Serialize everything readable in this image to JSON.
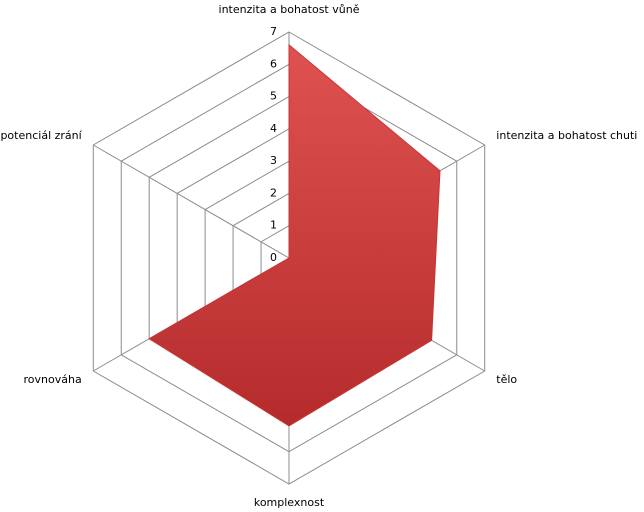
{
  "chart_data": {
    "type": "radar",
    "categories": [
      "intenzita a bohatost vůně",
      "intenzita a bohatost chuti",
      "tělo",
      "komplexnost",
      "rovnováha",
      "potenciál zrání"
    ],
    "series": [
      {
        "color": "#c83434",
        "values": [
          6.6,
          5.4,
          5.1,
          5.2,
          5.0,
          0
        ]
      }
    ],
    "ylim": [
      0,
      7
    ],
    "yticks": [
      0,
      1,
      2,
      3,
      4,
      5,
      6,
      7
    ],
    "grid": true
  }
}
